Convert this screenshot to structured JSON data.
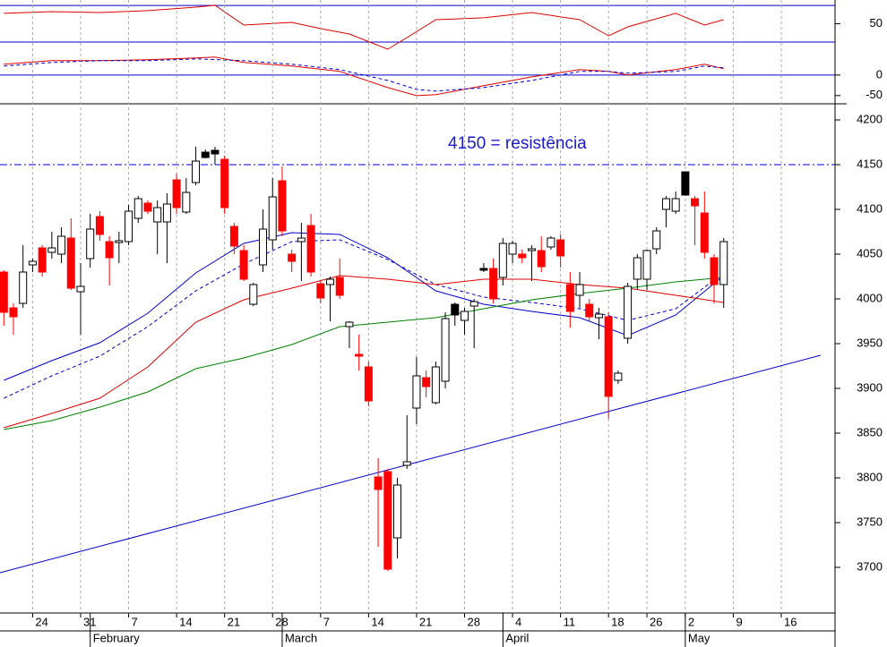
{
  "chart_data": [
    {
      "type": "line",
      "xlim": [
        -0.4,
        86.6
      ],
      "ylim": [
        29,
        76
      ],
      "yticks": [
        50
      ],
      "hlines": [
        70,
        30
      ],
      "hline_color": "#0000cc",
      "series": [
        {
          "color": "#dd0000",
          "x": [
            0,
            5,
            10,
            15,
            20,
            22,
            25,
            30,
            33,
            36,
            40,
            42,
            45,
            50,
            55,
            60,
            63,
            65,
            70,
            73,
            75
          ],
          "values": [
            61.4,
            63.3,
            62.3,
            64.3,
            68.2,
            70.2,
            48.6,
            51.5,
            44.7,
            38.8,
            22.1,
            34.9,
            54.5,
            56.5,
            62.3,
            54.5,
            36.8,
            46.6,
            61.4,
            48.6,
            54.5
          ]
        }
      ]
    },
    {
      "type": "line",
      "xlim": [
        -0.4,
        86.6
      ],
      "ylim": [
        -70,
        78
      ],
      "yticks": [
        0,
        -50
      ],
      "hlines": [
        0
      ],
      "hline_color": "#0000cc",
      "series": [
        {
          "color": "#dd0000",
          "x": [
            0,
            5,
            10,
            15,
            20,
            22,
            25,
            30,
            35,
            40,
            43,
            45,
            50,
            55,
            60,
            63,
            65,
            70,
            73,
            75
          ],
          "values": [
            26.1,
            34.9,
            34.9,
            37,
            41.4,
            43.6,
            30.5,
            21.8,
            8.7,
            -30.5,
            -50.1,
            -47.9,
            -26.1,
            -4.4,
            13.1,
            8.7,
            0,
            13.1,
            26.1,
            15.3
          ]
        },
        {
          "color": "#0000cc",
          "dashed": true,
          "x": [
            0,
            5,
            10,
            15,
            20,
            25,
            30,
            35,
            40,
            43,
            45,
            50,
            55,
            60,
            63,
            65,
            70,
            73,
            75
          ],
          "values": [
            21.8,
            30.5,
            34.9,
            34.9,
            39.2,
            34.9,
            26.1,
            13.1,
            -13.1,
            -34.9,
            -39.2,
            -30.5,
            -13.1,
            8.7,
            8.7,
            4.4,
            8.7,
            21.8,
            17.4
          ]
        }
      ]
    },
    {
      "type": "candlestick",
      "xlim": [
        -0.4,
        86.6
      ],
      "ylim": [
        3649,
        4218
      ],
      "yticks": [
        3700,
        3750,
        3800,
        3850,
        3900,
        3950,
        4000,
        4050,
        4100,
        4150,
        4200
      ],
      "xticks": [
        {
          "value": 3,
          "label": "24"
        },
        {
          "value": 8,
          "label": "31"
        },
        {
          "value": 13,
          "label": "7"
        },
        {
          "value": 18,
          "label": "14"
        },
        {
          "value": 23,
          "label": "21"
        },
        {
          "value": 28,
          "label": "28"
        },
        {
          "value": 33,
          "label": "7"
        },
        {
          "value": 38,
          "label": "14"
        },
        {
          "value": 43,
          "label": "21"
        },
        {
          "value": 48,
          "label": "28"
        },
        {
          "value": 53,
          "label": "4"
        },
        {
          "value": 58,
          "label": "11"
        },
        {
          "value": 63,
          "label": "18"
        },
        {
          "value": 67,
          "label": "26"
        },
        {
          "value": 71,
          "label": "2"
        },
        {
          "value": 76,
          "label": "9"
        },
        {
          "value": 81,
          "label": "16"
        }
      ],
      "month_ticks": [
        {
          "value": 9,
          "label": "February"
        },
        {
          "value": 29,
          "label": "March"
        },
        {
          "value": 52,
          "label": "April"
        },
        {
          "value": 71,
          "label": "May"
        }
      ],
      "grid": true,
      "up_color": "#ffffff",
      "down_color": "#ff0000",
      "black_color": "#000000",
      "black": [
        21,
        22,
        47,
        50,
        71
      ],
      "open": [
        4030,
        3990,
        3995,
        4038,
        4057,
        4052,
        4050,
        4068,
        4008,
        4045,
        4092,
        4064,
        4063,
        4064,
        4090,
        4107,
        4086,
        4086,
        4133,
        4097,
        4130,
        4164,
        4166,
        4156,
        4081,
        4054,
        3994,
        4038,
        4066,
        4132,
        4050,
        4064,
        4082,
        4017,
        4016,
        4024,
        3969,
        3938,
        3924,
        3801,
        3807,
        3733,
        3814,
        3878,
        3912,
        3884,
        3908,
        3994,
        3976,
        3992,
        4034,
        4034,
        4024,
        4050,
        4050,
        4054,
        4054,
        4058,
        4066,
        4016,
        4004,
        3994,
        3979,
        3980,
        3909,
        3956,
        4022,
        4022,
        4056,
        4100,
        4098,
        4142,
        4112,
        4096,
        4046,
        4016
      ],
      "high": [
        4032,
        3995,
        4060,
        4045,
        4060,
        4075,
        4080,
        4090,
        4040,
        4095,
        4098,
        4070,
        4075,
        4105,
        4115,
        4110,
        4110,
        4118,
        4140,
        4135,
        4170,
        4167,
        4170,
        4160,
        4085,
        4060,
        4018,
        4100,
        4135,
        4148,
        4055,
        4085,
        4095,
        4020,
        4025,
        4045,
        3975,
        3960,
        3930,
        3822,
        3810,
        3800,
        3870,
        3935,
        3920,
        3930,
        3985,
        3996,
        3990,
        4000,
        4040,
        4045,
        4068,
        4065,
        4055,
        4060,
        4070,
        4070,
        4072,
        4030,
        4030,
        4000,
        3990,
        3985,
        3920,
        4018,
        4050,
        4055,
        4080,
        4115,
        4120,
        4142,
        4115,
        4120,
        4050,
        4068
      ],
      "low": [
        3970,
        3960,
        3990,
        4030,
        4025,
        4045,
        4040,
        4010,
        3960,
        4035,
        4065,
        4015,
        4040,
        4060,
        4085,
        4095,
        4050,
        4040,
        4095,
        4095,
        4127,
        4157,
        4150,
        4095,
        4050,
        4020,
        3992,
        4030,
        4055,
        4070,
        4030,
        4020,
        4025,
        3995,
        3975,
        4000,
        3945,
        3920,
        3880,
        3723,
        3696,
        3710,
        3810,
        3860,
        3890,
        3882,
        3900,
        3970,
        3960,
        3945,
        4030,
        3995,
        4015,
        4040,
        4040,
        4020,
        4030,
        4055,
        4035,
        3968,
        3990,
        3975,
        3955,
        3866,
        3905,
        3950,
        4010,
        4010,
        4050,
        4080,
        4095,
        4116,
        4060,
        4045,
        3995,
        3990
      ],
      "close": [
        3985,
        3980,
        4030,
        4042,
        4030,
        4057,
        4070,
        4012,
        4014,
        4078,
        4072,
        4046,
        4065,
        4098,
        4112,
        4098,
        4102,
        4106,
        4102,
        4119,
        4154,
        4158,
        4162,
        4102,
        4059,
        4022,
        4016,
        4078,
        4114,
        4076,
        4042,
        4068,
        4030,
        4001,
        4022,
        4004,
        3974,
        3936,
        3886,
        3787,
        3698,
        3792,
        3818,
        3914,
        3902,
        3924,
        3978,
        3982,
        3986,
        3997,
        4032,
        4000,
        4062,
        4062,
        4046,
        4056,
        4036,
        4068,
        4048,
        3986,
        4016,
        3980,
        3983,
        3891,
        3917,
        4014,
        4046,
        4054,
        4076,
        4112,
        4112,
        4116,
        4104,
        4052,
        4016,
        4064
      ],
      "series": [
        {
          "color": "#0000cc",
          "x": [
            0,
            5,
            10,
            15,
            20,
            25,
            30,
            35,
            40,
            45,
            50,
            55,
            60,
            65,
            70,
            75
          ],
          "values": [
            3909,
            3931,
            3951,
            3984,
            4029,
            4062,
            4074,
            4072,
            4046,
            4009,
            3994,
            3986,
            3979,
            3959,
            3982,
            4026
          ]
        },
        {
          "color": "#0000cc",
          "dashed": true,
          "x": [
            0,
            5,
            10,
            15,
            20,
            25,
            30,
            35,
            40,
            45,
            50,
            55,
            60,
            65,
            70,
            75
          ],
          "values": [
            3889,
            3914,
            3936,
            3969,
            4009,
            4039,
            4064,
            4066,
            4044,
            4016,
            4002,
            3996,
            3989,
            3976,
            3989,
            4029
          ]
        },
        {
          "color": "#dd0000",
          "x": [
            0,
            5,
            10,
            15,
            20,
            25,
            30,
            35,
            40,
            45,
            50,
            55,
            60,
            65,
            70,
            75
          ],
          "values": [
            3856,
            3872,
            3889,
            3924,
            3974,
            3999,
            4012,
            4026,
            4022,
            4016,
            4022,
            4022,
            4016,
            4012,
            4004,
            3996
          ]
        },
        {
          "color": "#008000",
          "x": [
            0,
            5,
            10,
            15,
            20,
            25,
            30,
            35,
            40,
            45,
            50,
            55,
            60,
            65,
            70,
            75
          ],
          "values": [
            3854,
            3864,
            3879,
            3896,
            3922,
            3934,
            3949,
            3969,
            3974,
            3979,
            3989,
            3999,
            4006,
            4012,
            4019,
            4024
          ]
        }
      ],
      "resistance": 4150,
      "resistance_color": "#0000cc",
      "annotation": "4150 = resistência",
      "trendline": {
        "color": "#0000cc",
        "x": [
          -0.4,
          85.1
        ],
        "values": [
          3694,
          3937
        ]
      }
    }
  ]
}
